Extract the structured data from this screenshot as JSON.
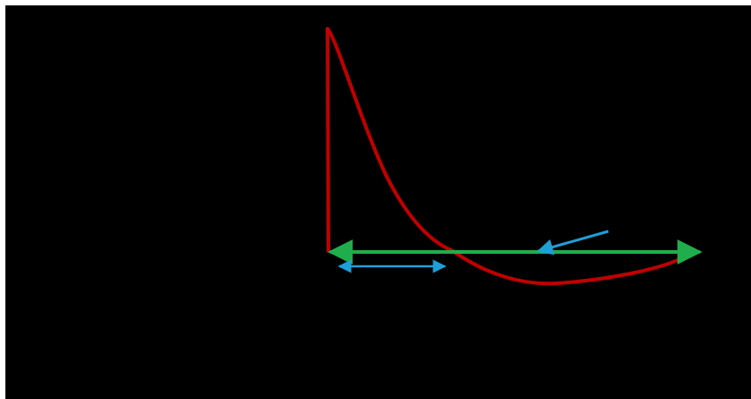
{
  "diagram": {
    "background_color": "#000000",
    "frame_color": "#ffffff",
    "curve_color": "#c00000",
    "axis_color": "#1fae4b",
    "marker_color": "#1f9fd8"
  }
}
